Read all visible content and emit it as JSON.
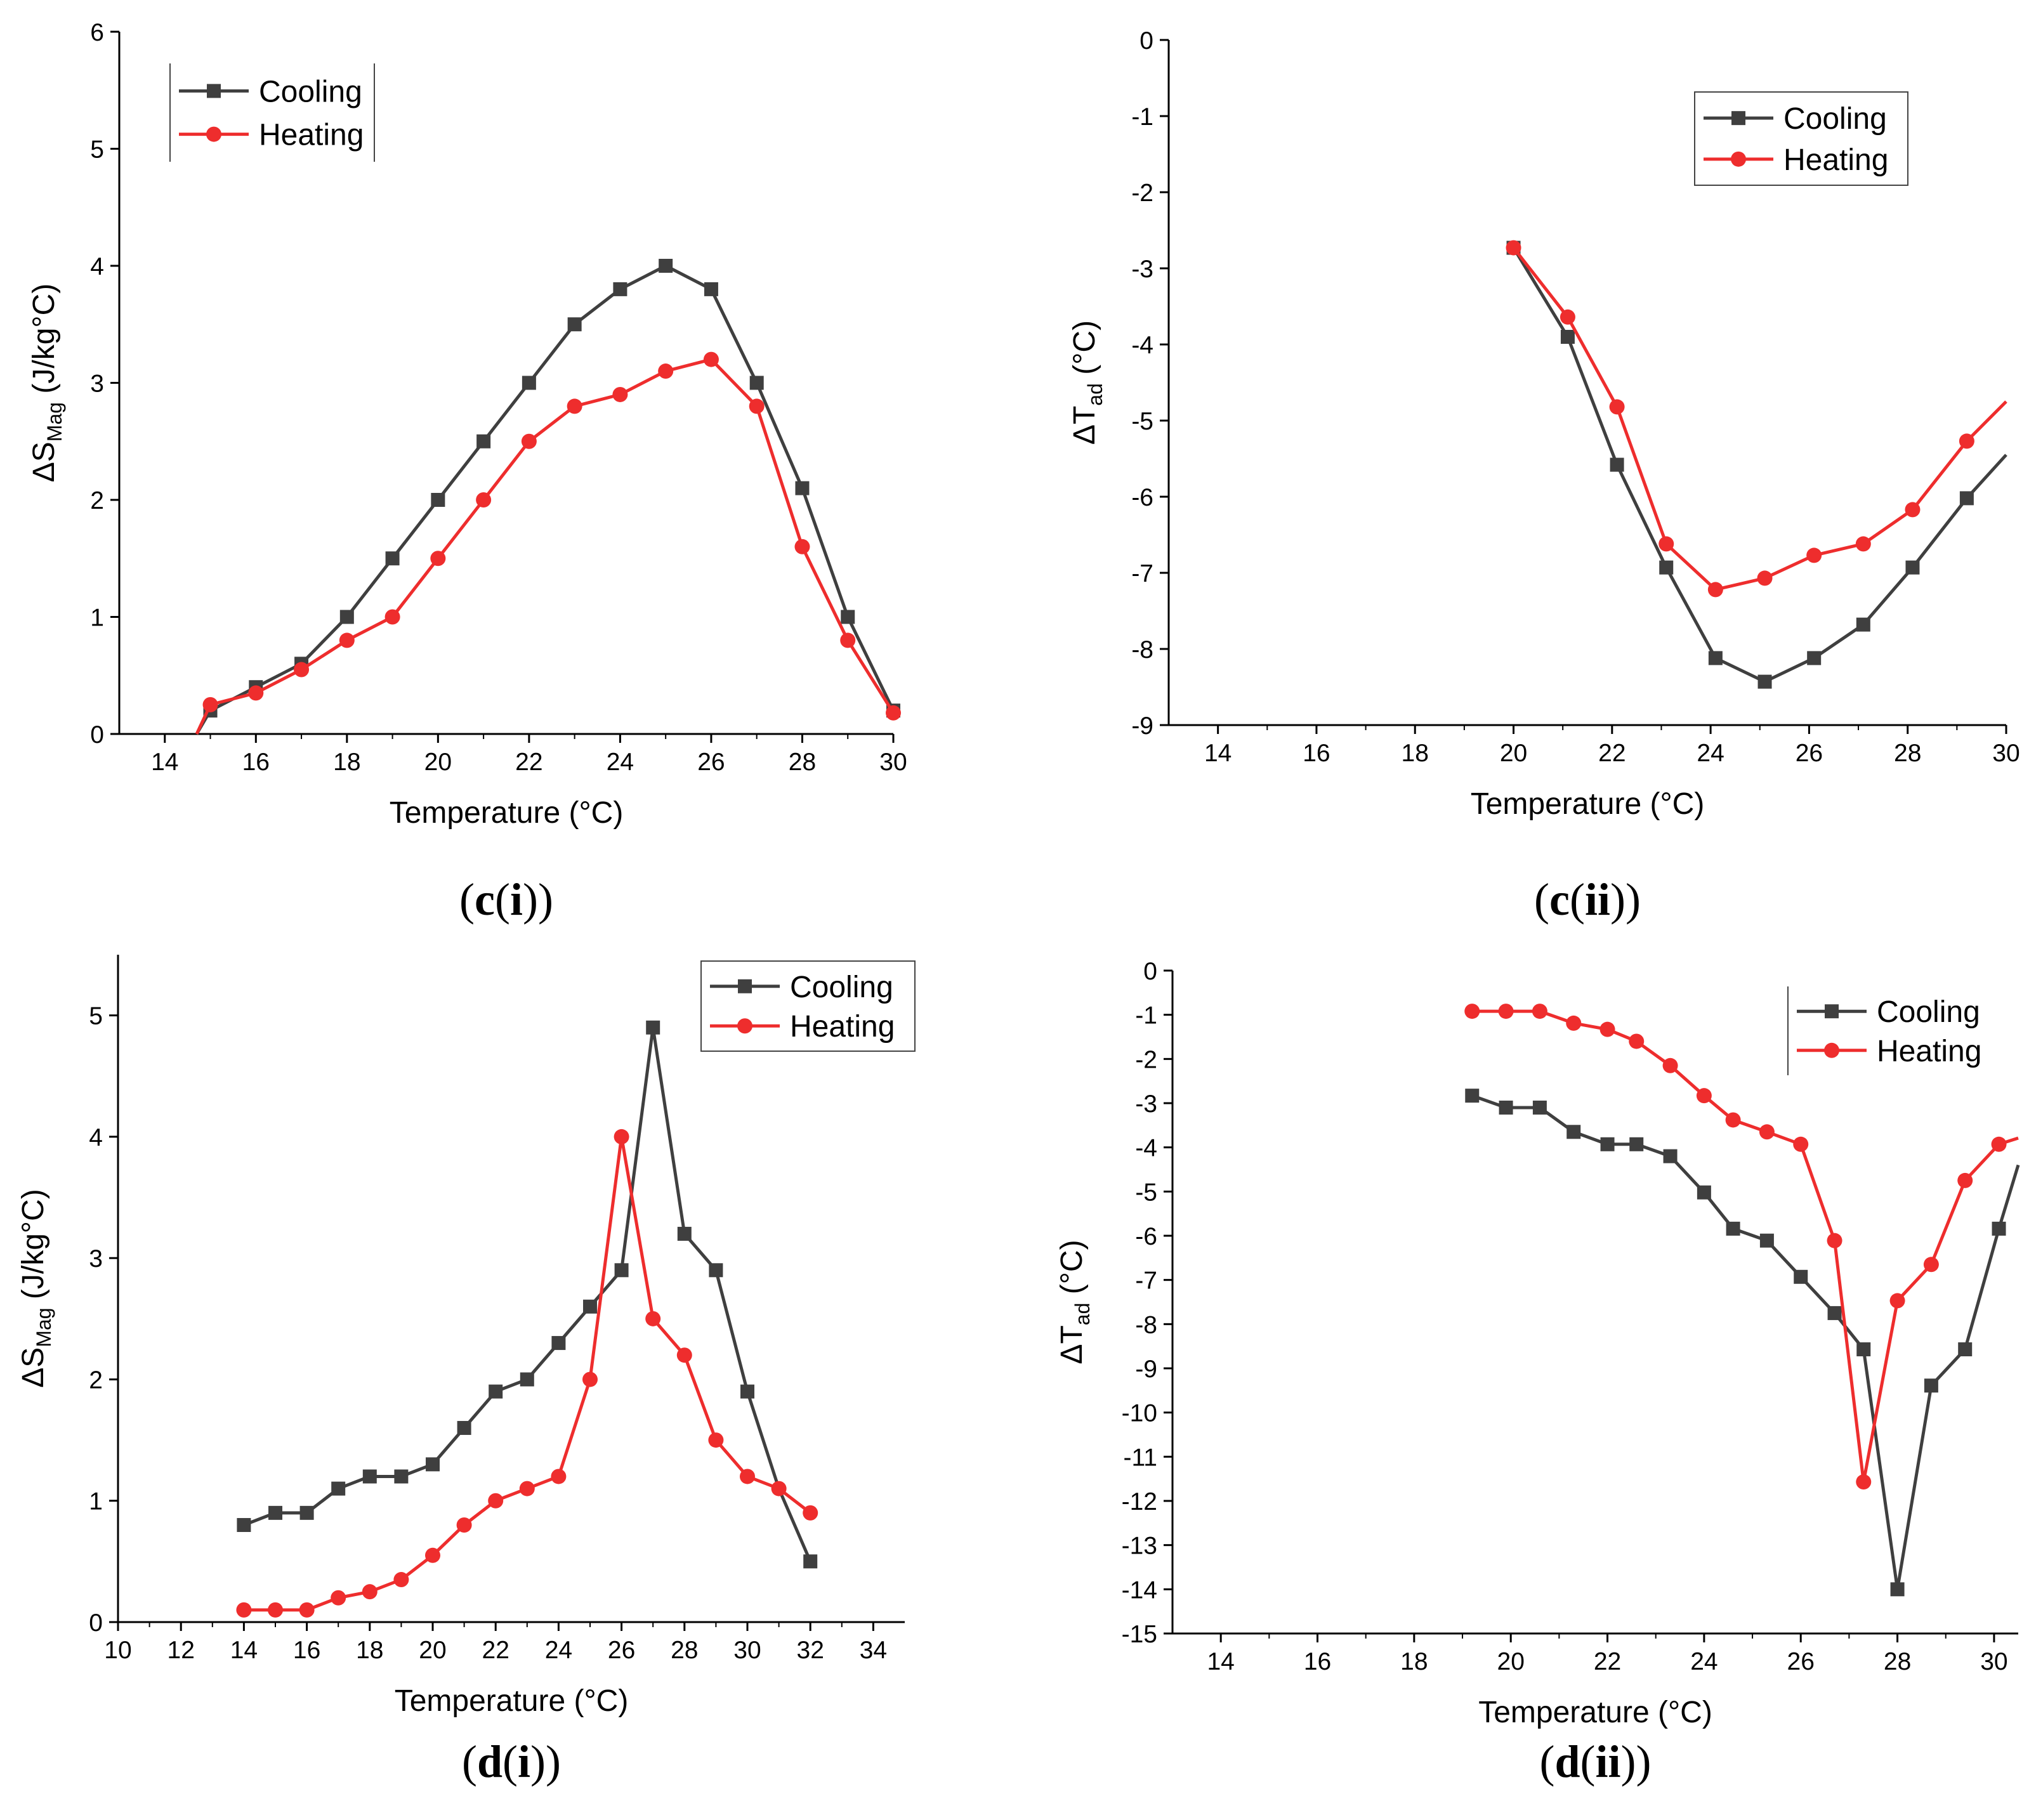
{
  "colors": {
    "cooling": "#3f3f3f",
    "heating": "#ee2d2d",
    "axis": "#000000"
  },
  "chart_data": [
    {
      "type": "line",
      "caption": {
        "open": "(",
        "letter": "c",
        "mid": "(",
        "roman": "i",
        "close": "))"
      },
      "xlabel": "Temperature (°C)",
      "ylabel": {
        "prefix": "ΔS",
        "sub": "Mag",
        "suffix": " (J/kg°C)"
      },
      "xlim": [
        13,
        30
      ],
      "ylim": [
        0,
        6
      ],
      "xticks": [
        14,
        16,
        18,
        20,
        22,
        24,
        26,
        28,
        30
      ],
      "yticks": [
        0,
        1,
        2,
        3,
        4,
        5,
        6
      ],
      "xtick_labels": [
        "14",
        "16",
        "18",
        "20",
        "22",
        "24",
        "26",
        "28",
        "30"
      ],
      "ytick_labels": [
        "0",
        "1",
        "2",
        "3",
        "4",
        "5",
        "6"
      ],
      "legend": {
        "position": "top-left",
        "frame": "sides"
      },
      "series": [
        {
          "name": "Cooling",
          "marker": "square",
          "x": [
            14.7,
            15,
            16,
            17,
            18,
            19,
            20,
            21,
            22,
            23,
            24,
            25,
            26,
            27,
            28,
            29,
            30
          ],
          "y": [
            0.0,
            0.2,
            0.4,
            0.6,
            1.0,
            1.5,
            2.0,
            2.5,
            3.0,
            3.5,
            3.8,
            4.0,
            3.8,
            3.0,
            2.1,
            1.0,
            0.2
          ],
          "markers": [
            false,
            true,
            true,
            true,
            true,
            true,
            true,
            true,
            true,
            true,
            true,
            true,
            true,
            true,
            true,
            true,
            true
          ]
        },
        {
          "name": "Heating",
          "marker": "circle",
          "x": [
            14.7,
            15,
            16,
            17,
            18,
            19,
            20,
            21,
            22,
            23,
            24,
            25,
            26,
            27,
            28,
            29,
            30
          ],
          "y": [
            0.0,
            0.25,
            0.35,
            0.55,
            0.8,
            1.0,
            1.5,
            2.0,
            2.5,
            2.8,
            2.9,
            3.1,
            3.2,
            2.8,
            1.6,
            0.8,
            0.18
          ],
          "markers": [
            false,
            true,
            true,
            true,
            true,
            true,
            true,
            true,
            true,
            true,
            true,
            true,
            true,
            true,
            true,
            true,
            true
          ]
        }
      ]
    },
    {
      "type": "line",
      "caption": {
        "open": "(",
        "letter": "c",
        "mid": "(",
        "roman": "ii",
        "close": "))"
      },
      "xlabel": "Temperature (°C)",
      "ylabel": {
        "prefix": "ΔT",
        "sub": "ad",
        "suffix": " (°C)"
      },
      "xlim": [
        13,
        30
      ],
      "ylim": [
        -9,
        0
      ],
      "xticks": [
        14,
        16,
        18,
        20,
        22,
        24,
        26,
        28,
        30
      ],
      "yticks": [
        0,
        -1,
        -2,
        -3,
        -4,
        -5,
        -6,
        -7,
        -8,
        -9
      ],
      "xtick_labels": [
        "14",
        "16",
        "18",
        "20",
        "22",
        "24",
        "26",
        "28",
        "30"
      ],
      "ytick_labels": [
        "0",
        "-1",
        "-2",
        "-3",
        "-4",
        "-5",
        "-6",
        "-7",
        "-8",
        "-9"
      ],
      "legend": {
        "position": "top-right",
        "frame": "box"
      },
      "series": [
        {
          "name": "Cooling",
          "marker": "square",
          "x": [
            20,
            21.1,
            22.1,
            23.1,
            24.1,
            25.1,
            26.1,
            27.1,
            28.1,
            29.2,
            30
          ],
          "y": [
            -2.73,
            -3.9,
            -5.58,
            -6.93,
            -8.12,
            -8.43,
            -8.12,
            -7.68,
            -6.93,
            -6.02,
            -5.45
          ],
          "markers": [
            true,
            true,
            true,
            true,
            true,
            true,
            true,
            true,
            true,
            true,
            false
          ]
        },
        {
          "name": "Heating",
          "marker": "circle",
          "x": [
            20,
            21.1,
            22.1,
            23.1,
            24.1,
            25.1,
            26.1,
            27.1,
            28.1,
            29.2,
            30
          ],
          "y": [
            -2.73,
            -3.64,
            -4.82,
            -6.62,
            -7.22,
            -7.07,
            -6.77,
            -6.62,
            -6.17,
            -5.27,
            -4.75
          ],
          "markers": [
            true,
            true,
            true,
            true,
            true,
            true,
            true,
            true,
            true,
            true,
            false
          ]
        }
      ]
    },
    {
      "type": "line",
      "caption": {
        "open": "(",
        "letter": "d",
        "mid": "(",
        "roman": "i",
        "close": "))"
      },
      "xlabel": "Temperature (°C)",
      "ylabel": {
        "prefix": "ΔS",
        "sub": "Mag",
        "suffix": " (J/kg°C)"
      },
      "xlim": [
        10,
        35
      ],
      "ylim": [
        0,
        5.5
      ],
      "xticks": [
        10,
        12,
        14,
        16,
        18,
        20,
        22,
        24,
        26,
        28,
        30,
        32,
        34
      ],
      "yticks": [
        0,
        1,
        2,
        3,
        4,
        5
      ],
      "xtick_labels": [
        "10",
        "12",
        "14",
        "16",
        "18",
        "20",
        "22",
        "24",
        "26",
        "28",
        "30",
        "32",
        "34"
      ],
      "ytick_labels": [
        "0",
        "1",
        "2",
        "3",
        "4",
        "5"
      ],
      "legend": {
        "position": "top-right",
        "frame": "box"
      },
      "series": [
        {
          "name": "Cooling",
          "marker": "square",
          "x": [
            14,
            15,
            16,
            17,
            18,
            19,
            20,
            21,
            22,
            23,
            24,
            25,
            26,
            27,
            28,
            29,
            30,
            31,
            32
          ],
          "y": [
            0.8,
            0.9,
            0.9,
            1.1,
            1.2,
            1.2,
            1.3,
            1.6,
            1.9,
            2.0,
            2.3,
            2.6,
            2.9,
            4.9,
            3.2,
            2.9,
            1.9,
            1.1,
            0.5
          ],
          "markers": [
            true,
            true,
            true,
            true,
            true,
            true,
            true,
            true,
            true,
            true,
            true,
            true,
            true,
            true,
            true,
            true,
            true,
            false,
            true
          ]
        },
        {
          "name": "Heating",
          "marker": "circle",
          "x": [
            14,
            15,
            16,
            17,
            18,
            19,
            20,
            21,
            22,
            23,
            24,
            25,
            26,
            27,
            28,
            29,
            30,
            31,
            32
          ],
          "y": [
            0.1,
            0.1,
            0.1,
            0.2,
            0.25,
            0.35,
            0.55,
            0.8,
            1.0,
            1.1,
            1.2,
            2.0,
            4.0,
            2.5,
            2.2,
            1.5,
            1.2,
            1.1,
            0.9
          ],
          "markers": [
            true,
            true,
            true,
            true,
            true,
            true,
            true,
            true,
            true,
            true,
            true,
            true,
            true,
            true,
            true,
            true,
            true,
            true,
            true
          ]
        }
      ]
    },
    {
      "type": "line",
      "caption": {
        "open": "(",
        "letter": "d",
        "mid": "(",
        "roman": "ii",
        "close": "))"
      },
      "xlabel": "Temperature (°C)",
      "ylabel": {
        "prefix": "ΔT",
        "sub": "ad",
        "suffix": " (°C)"
      },
      "xlim": [
        13,
        30.5
      ],
      "ylim": [
        -15,
        0
      ],
      "xticks": [
        14,
        16,
        18,
        20,
        22,
        24,
        26,
        28,
        30
      ],
      "yticks": [
        0,
        -1,
        -2,
        -3,
        -4,
        -5,
        -6,
        -7,
        -8,
        -9,
        -10,
        -11,
        -12,
        -13,
        -14,
        -15
      ],
      "xtick_labels": [
        "14",
        "16",
        "18",
        "20",
        "22",
        "24",
        "26",
        "28",
        "30"
      ],
      "ytick_labels": [
        "0",
        "-1",
        "-2",
        "-3",
        "-4",
        "-5",
        "-6",
        "-7",
        "-8",
        "-9",
        "-10",
        "-11",
        "-12",
        "-13",
        "-14",
        "-15"
      ],
      "legend": {
        "position": "top-right",
        "frame": "left"
      },
      "series": [
        {
          "name": "Cooling",
          "marker": "square",
          "x": [
            19.2,
            19.9,
            20.6,
            21.3,
            22,
            22.6,
            23.3,
            24,
            24.6,
            25.3,
            26,
            26.7,
            27.3,
            28,
            28.7,
            29.4,
            30.1,
            30.5
          ],
          "y": [
            -2.83,
            -3.1,
            -3.1,
            -3.65,
            -3.93,
            -3.93,
            -4.2,
            -5.02,
            -5.84,
            -6.11,
            -6.93,
            -7.75,
            -8.57,
            -14.0,
            -9.39,
            -8.57,
            -5.84,
            -4.4
          ],
          "markers": [
            true,
            true,
            true,
            true,
            true,
            true,
            true,
            true,
            true,
            true,
            true,
            true,
            true,
            true,
            true,
            true,
            true,
            false
          ]
        },
        {
          "name": "Heating",
          "marker": "circle",
          "x": [
            19.2,
            19.9,
            20.6,
            21.3,
            22,
            22.6,
            23.3,
            24,
            24.6,
            25.3,
            26,
            26.7,
            27.3,
            28,
            28.7,
            29.4,
            30.1,
            30.5
          ],
          "y": [
            -0.92,
            -0.92,
            -0.92,
            -1.19,
            -1.33,
            -1.6,
            -2.15,
            -2.83,
            -3.38,
            -3.65,
            -3.93,
            -6.11,
            -11.57,
            -7.47,
            -6.65,
            -4.75,
            -3.93,
            -3.79
          ],
          "markers": [
            true,
            true,
            true,
            true,
            true,
            true,
            true,
            true,
            true,
            true,
            true,
            true,
            true,
            true,
            true,
            true,
            true,
            false
          ]
        }
      ]
    }
  ]
}
